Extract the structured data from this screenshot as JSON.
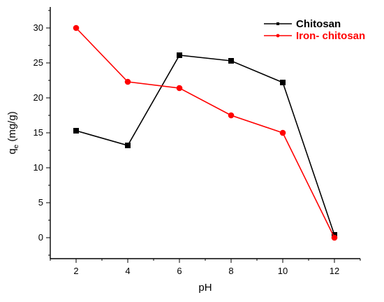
{
  "chart_data": {
    "type": "line",
    "xlabel": "pH",
    "ylabel_main": "q",
    "ylabel_sub": "e",
    "ylabel_unit": " (mg/g)",
    "x": [
      2,
      4,
      6,
      8,
      10,
      12
    ],
    "xlim": [
      1,
      13
    ],
    "ylim": [
      -3,
      33
    ],
    "xticks": [
      2,
      4,
      6,
      8,
      10,
      12
    ],
    "yticks": [
      0,
      5,
      10,
      15,
      20,
      25,
      30
    ],
    "legend_position": "top-right",
    "series": [
      {
        "name": "Chitosan",
        "color": "#000000",
        "marker": "square",
        "values": [
          15.3,
          13.2,
          26.1,
          25.3,
          22.2,
          0.4
        ]
      },
      {
        "name": "Iron- chitosan",
        "color": "#ff0000",
        "marker": "circle",
        "values": [
          30.0,
          22.3,
          21.4,
          17.5,
          15.0,
          0.0
        ]
      }
    ]
  }
}
